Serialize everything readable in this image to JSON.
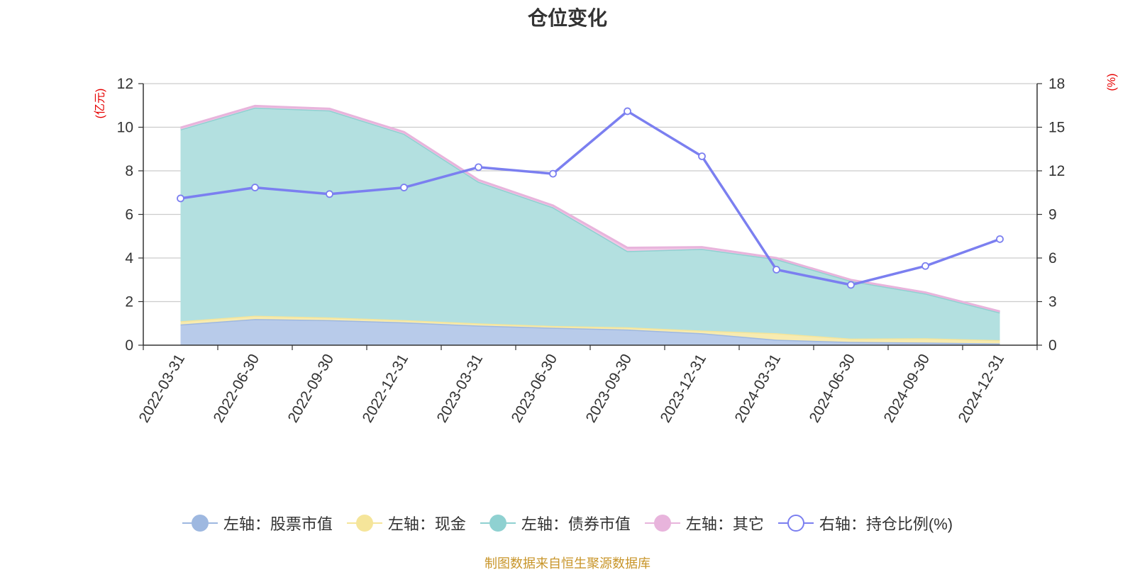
{
  "chart_data": {
    "type": "area",
    "title": "仓位变化",
    "left_axis": {
      "label": "(亿元)",
      "min": 0,
      "max": 12,
      "ticks": [
        0,
        2,
        4,
        6,
        8,
        10,
        12
      ]
    },
    "right_axis": {
      "label": "(%)",
      "min": 0,
      "max": 18,
      "ticks": [
        0,
        3,
        6,
        9,
        12,
        15,
        18
      ]
    },
    "categories": [
      "2022-03-31",
      "2022-06-30",
      "2022-09-30",
      "2022-12-31",
      "2023-03-31",
      "2023-06-30",
      "2023-09-30",
      "2023-12-31",
      "2024-03-31",
      "2024-06-30",
      "2024-09-30",
      "2024-12-31"
    ],
    "series": [
      {
        "name": "左轴：股票市值",
        "axis": "left",
        "stacked": true,
        "color": "#9eb8e0",
        "fill": "#b8cbea",
        "values": [
          0.95,
          1.2,
          1.15,
          1.05,
          0.9,
          0.8,
          0.72,
          0.55,
          0.25,
          0.15,
          0.12,
          0.08
        ]
      },
      {
        "name": "左轴：现金",
        "axis": "left",
        "stacked": true,
        "color": "#f5e59a",
        "fill": "#f7ebb0",
        "values": [
          0.15,
          0.15,
          0.12,
          0.1,
          0.1,
          0.08,
          0.1,
          0.12,
          0.3,
          0.15,
          0.2,
          0.15
        ]
      },
      {
        "name": "左轴：债券市值",
        "axis": "left",
        "stacked": true,
        "color": "#8fd1d1",
        "fill": "#b3e0e0",
        "values": [
          8.8,
          9.55,
          9.5,
          8.55,
          6.5,
          5.45,
          3.5,
          3.75,
          3.4,
          2.65,
          2.05,
          1.27
        ]
      },
      {
        "name": "左轴：其它",
        "axis": "left",
        "stacked": true,
        "color": "#e8b4dc",
        "fill": "#f0c8e6",
        "values": [
          0.08,
          0.08,
          0.08,
          0.08,
          0.08,
          0.08,
          0.15,
          0.08,
          0.05,
          0.05,
          0.05,
          0.05
        ]
      },
      {
        "name": "右轴：持仓比例(%)",
        "axis": "right",
        "type": "line",
        "color": "#7b7ff0",
        "values": [
          10.1,
          10.85,
          10.4,
          10.85,
          12.25,
          11.8,
          16.1,
          13.0,
          5.2,
          4.15,
          5.45,
          7.3
        ]
      }
    ],
    "legend": [
      "左轴：股票市值",
      "左轴：现金",
      "左轴：债券市值",
      "左轴：其它",
      "右轴：持仓比例(%)"
    ],
    "legend_position": "bottom",
    "grid": true
  },
  "source_note": "制图数据来自恒生聚源数据库",
  "colors": {
    "axis_label": "#e60000",
    "grid": "#cccccc",
    "axis": "#333333"
  }
}
